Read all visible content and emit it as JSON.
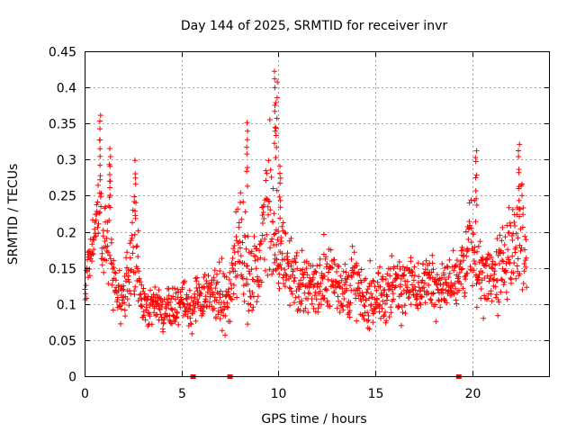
{
  "chart_data": {
    "type": "scatter",
    "title": "Day 144 of 2025, SRMTID for receiver invr",
    "xlabel": "GPS time / hours",
    "ylabel": "SRMTID / TECUs",
    "xlim": [
      0,
      24
    ],
    "ylim": [
      0,
      0.45
    ],
    "x_ticks": [
      "0",
      "5",
      "10",
      "15",
      "20"
    ],
    "y_ticks": [
      "0",
      "0.05",
      "0.1",
      "0.15",
      "0.2",
      "0.25",
      "0.3",
      "0.35",
      "0.4",
      "0.45"
    ],
    "grid": true,
    "marker": "+",
    "color": "#ff0000",
    "zero_markers_x": [
      5.6,
      7.5,
      19.3
    ],
    "envelope": {
      "x": [
        0.0,
        0.3,
        0.5,
        0.8,
        1.0,
        1.3,
        1.6,
        2.0,
        2.5,
        3.0,
        3.5,
        4.0,
        4.5,
        5.0,
        5.5,
        6.0,
        6.5,
        7.0,
        7.5,
        8.0,
        8.5,
        9.0,
        9.5,
        10.0,
        10.5,
        11.0,
        11.5,
        12.0,
        12.5,
        13.0,
        13.5,
        14.0,
        14.5,
        15.0,
        15.5,
        16.0,
        16.5,
        17.0,
        17.5,
        18.0,
        18.5,
        19.0,
        19.5,
        20.0,
        20.5,
        21.0,
        21.5,
        22.0,
        22.5,
        22.8
      ],
      "low": [
        0.08,
        0.1,
        0.12,
        0.12,
        0.11,
        0.09,
        0.07,
        0.06,
        0.06,
        0.05,
        0.05,
        0.05,
        0.05,
        0.05,
        0.05,
        0.06,
        0.06,
        0.05,
        0.05,
        0.06,
        0.06,
        0.07,
        0.08,
        0.08,
        0.07,
        0.06,
        0.06,
        0.06,
        0.06,
        0.06,
        0.06,
        0.06,
        0.05,
        0.05,
        0.05,
        0.06,
        0.06,
        0.07,
        0.07,
        0.07,
        0.07,
        0.07,
        0.08,
        0.07,
        0.07,
        0.06,
        0.07,
        0.09,
        0.09,
        0.08
      ],
      "high": [
        0.15,
        0.24,
        0.25,
        0.37,
        0.25,
        0.32,
        0.17,
        0.16,
        0.3,
        0.15,
        0.14,
        0.13,
        0.14,
        0.16,
        0.15,
        0.16,
        0.17,
        0.18,
        0.18,
        0.36,
        0.19,
        0.24,
        0.43,
        0.28,
        0.22,
        0.2,
        0.2,
        0.19,
        0.24,
        0.2,
        0.18,
        0.2,
        0.18,
        0.17,
        0.18,
        0.19,
        0.2,
        0.18,
        0.19,
        0.21,
        0.19,
        0.19,
        0.21,
        0.32,
        0.2,
        0.22,
        0.24,
        0.27,
        0.33,
        0.25
      ]
    },
    "spikes": [
      {
        "x": 0.8,
        "y": 0.37
      },
      {
        "x": 1.3,
        "y": 0.32
      },
      {
        "x": 2.6,
        "y": 0.3
      },
      {
        "x": 8.4,
        "y": 0.36
      },
      {
        "x": 9.8,
        "y": 0.43
      },
      {
        "x": 9.9,
        "y": 0.41
      },
      {
        "x": 10.1,
        "y": 0.3
      },
      {
        "x": 20.2,
        "y": 0.32
      },
      {
        "x": 22.4,
        "y": 0.33
      }
    ]
  }
}
